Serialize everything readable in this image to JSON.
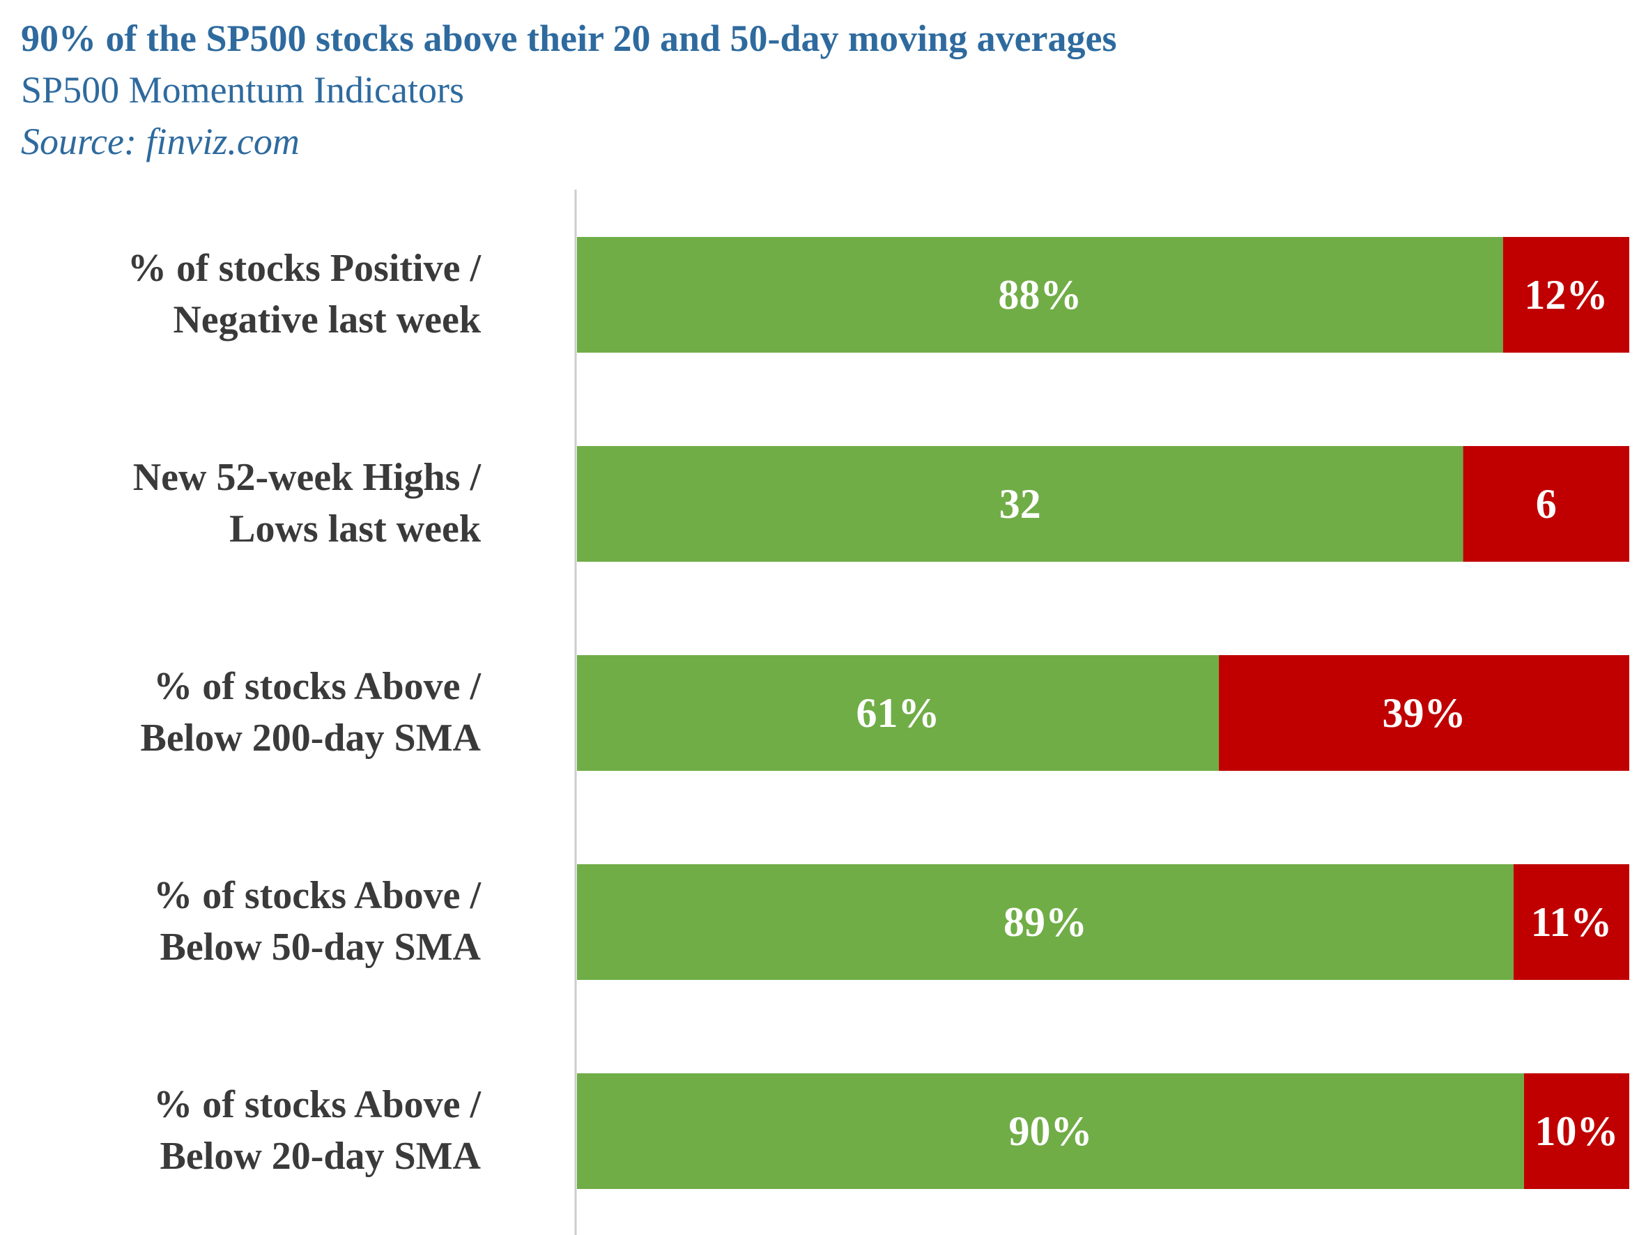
{
  "header": {
    "title": "90% of  the SP500 stocks above their 20 and 50-day moving averages",
    "subtitle": "SP500 Momentum Indicators",
    "source": "Source: finviz.com"
  },
  "colors": {
    "positive": "#70ad47",
    "negative": "#c00000",
    "text": "#3a3a3a",
    "title": "#2e6a9e",
    "axis": "#cccccc"
  },
  "chart_data": {
    "type": "bar",
    "orientation": "horizontal",
    "stacked": "100%",
    "categories": [
      [
        "% of stocks Positive /",
        "Negative last week"
      ],
      [
        "New 52-week Highs /",
        "Lows last week"
      ],
      [
        "% of stocks Above /",
        "Below 200-day SMA"
      ],
      [
        "% of stocks Above /",
        "Below 50-day SMA"
      ],
      [
        "% of stocks Above /",
        "Below 20-day SMA"
      ]
    ],
    "series": [
      {
        "values": [
          88,
          32,
          61,
          89,
          90
        ],
        "labels": [
          "88%",
          "32",
          "61%",
          "89%",
          "90%"
        ]
      },
      {
        "values": [
          12,
          6,
          39,
          11,
          10
        ],
        "labels": [
          "12%",
          "6",
          "39%",
          "11%",
          "10%"
        ]
      }
    ],
    "legend": "none",
    "grid": false
  }
}
